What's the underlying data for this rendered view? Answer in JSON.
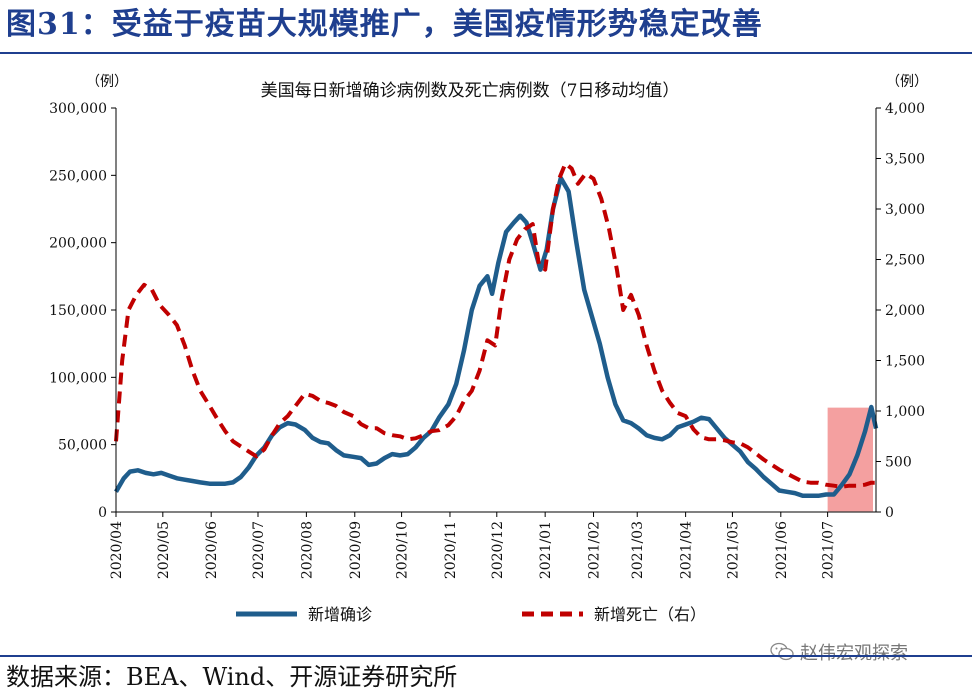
{
  "figure": {
    "title": "图31：受益于疫苗大规模推广，美国疫情形势稳定改善",
    "source": "数据来源：BEA、Wind、开源证券研究所",
    "watermark": "赵伟宏观探索",
    "watermark_icon": "wechat-icon"
  },
  "chart_data": {
    "type": "line",
    "title": "美国每日新增确诊病例数及死亡病例数（7日移动均值）",
    "y_unit_left": "（例）",
    "y_unit_right": "（例）",
    "x_ticks": [
      "2020/04",
      "2020/05",
      "2020/06",
      "2020/07",
      "2020/08",
      "2020/09",
      "2020/10",
      "2020/11",
      "2020/12",
      "2021/01",
      "2021/02",
      "2021/03",
      "2021/04",
      "2021/05",
      "2021/06",
      "2021/07"
    ],
    "ylim_left": [
      0,
      300000
    ],
    "yticks_left": [
      "0",
      "50,000",
      "100,000",
      "150,000",
      "200,000",
      "250,000",
      "300,000"
    ],
    "ylim_right": [
      0,
      4000
    ],
    "yticks_right": [
      "0",
      "500",
      "1,000",
      "1,500",
      "2,000",
      "2,500",
      "3,000",
      "3,500",
      "4,000"
    ],
    "grid": false,
    "legend_position": "bottom",
    "colors": {
      "confirmed": "#1f5d8c",
      "deaths": "#c00000",
      "highlight": "#f08080"
    },
    "highlight": {
      "x_start": "2021-07-01",
      "x_end": "2021-08-01",
      "y_low": 500,
      "y_high": 77500
    },
    "series": [
      {
        "name": "新增确诊",
        "axis": "left",
        "style": "solid",
        "points": [
          [
            "2020-04-01",
            15000
          ],
          [
            "2020-04-06",
            25000
          ],
          [
            "2020-04-10",
            30000
          ],
          [
            "2020-04-15",
            31000
          ],
          [
            "2020-04-20",
            29000
          ],
          [
            "2020-04-25",
            28000
          ],
          [
            "2020-04-30",
            29000
          ],
          [
            "2020-05-05",
            27000
          ],
          [
            "2020-05-10",
            25000
          ],
          [
            "2020-05-15",
            24000
          ],
          [
            "2020-05-20",
            23000
          ],
          [
            "2020-05-25",
            22000
          ],
          [
            "2020-05-31",
            21000
          ],
          [
            "2020-06-05",
            21000
          ],
          [
            "2020-06-10",
            21000
          ],
          [
            "2020-06-15",
            22000
          ],
          [
            "2020-06-20",
            26000
          ],
          [
            "2020-06-25",
            33000
          ],
          [
            "2020-06-30",
            42000
          ],
          [
            "2020-07-05",
            48000
          ],
          [
            "2020-07-10",
            57000
          ],
          [
            "2020-07-15",
            63000
          ],
          [
            "2020-07-20",
            66000
          ],
          [
            "2020-07-25",
            65000
          ],
          [
            "2020-07-31",
            61000
          ],
          [
            "2020-08-05",
            55000
          ],
          [
            "2020-08-10",
            52000
          ],
          [
            "2020-08-15",
            51000
          ],
          [
            "2020-08-20",
            46000
          ],
          [
            "2020-08-25",
            42000
          ],
          [
            "2020-08-31",
            41000
          ],
          [
            "2020-09-05",
            40000
          ],
          [
            "2020-09-10",
            35000
          ],
          [
            "2020-09-15",
            36000
          ],
          [
            "2020-09-20",
            40000
          ],
          [
            "2020-09-25",
            43000
          ],
          [
            "2020-09-30",
            42000
          ],
          [
            "2020-10-05",
            43000
          ],
          [
            "2020-10-10",
            48000
          ],
          [
            "2020-10-15",
            55000
          ],
          [
            "2020-10-20",
            60000
          ],
          [
            "2020-10-25",
            70000
          ],
          [
            "2020-10-31",
            80000
          ],
          [
            "2020-11-05",
            95000
          ],
          [
            "2020-11-10",
            120000
          ],
          [
            "2020-11-15",
            150000
          ],
          [
            "2020-11-20",
            168000
          ],
          [
            "2020-11-25",
            175000
          ],
          [
            "2020-11-28",
            162000
          ],
          [
            "2020-12-02",
            185000
          ],
          [
            "2020-12-07",
            208000
          ],
          [
            "2020-12-12",
            215000
          ],
          [
            "2020-12-16",
            220000
          ],
          [
            "2020-12-20",
            215000
          ],
          [
            "2020-12-24",
            200000
          ],
          [
            "2020-12-29",
            180000
          ],
          [
            "2021-01-02",
            195000
          ],
          [
            "2021-01-06",
            225000
          ],
          [
            "2021-01-11",
            248000
          ],
          [
            "2021-01-16",
            238000
          ],
          [
            "2021-01-21",
            200000
          ],
          [
            "2021-01-26",
            165000
          ],
          [
            "2021-01-31",
            145000
          ],
          [
            "2021-02-05",
            125000
          ],
          [
            "2021-02-10",
            100000
          ],
          [
            "2021-02-15",
            80000
          ],
          [
            "2021-02-20",
            68000
          ],
          [
            "2021-02-25",
            66000
          ],
          [
            "2021-03-02",
            62000
          ],
          [
            "2021-03-07",
            57000
          ],
          [
            "2021-03-12",
            55000
          ],
          [
            "2021-03-17",
            54000
          ],
          [
            "2021-03-22",
            57000
          ],
          [
            "2021-03-27",
            63000
          ],
          [
            "2021-04-01",
            65000
          ],
          [
            "2021-04-06",
            67000
          ],
          [
            "2021-04-11",
            70000
          ],
          [
            "2021-04-16",
            69000
          ],
          [
            "2021-04-21",
            62000
          ],
          [
            "2021-04-26",
            55000
          ],
          [
            "2021-05-01",
            50000
          ],
          [
            "2021-05-06",
            45000
          ],
          [
            "2021-05-11",
            37000
          ],
          [
            "2021-05-16",
            32000
          ],
          [
            "2021-05-21",
            26000
          ],
          [
            "2021-05-26",
            21000
          ],
          [
            "2021-05-31",
            16000
          ],
          [
            "2021-06-05",
            15000
          ],
          [
            "2021-06-10",
            14000
          ],
          [
            "2021-06-15",
            12000
          ],
          [
            "2021-06-20",
            12000
          ],
          [
            "2021-06-25",
            12000
          ],
          [
            "2021-06-30",
            13000
          ],
          [
            "2021-07-05",
            13000
          ],
          [
            "2021-07-10",
            20000
          ],
          [
            "2021-07-15",
            28000
          ],
          [
            "2021-07-20",
            42000
          ],
          [
            "2021-07-25",
            60000
          ],
          [
            "2021-07-29",
            78000
          ],
          [
            "2021-08-01",
            62000
          ]
        ]
      },
      {
        "name": "新增死亡（右）",
        "axis": "right",
        "style": "dashed",
        "points": [
          [
            "2020-04-01",
            700
          ],
          [
            "2020-04-05",
            1500
          ],
          [
            "2020-04-09",
            2000
          ],
          [
            "2020-04-14",
            2150
          ],
          [
            "2020-04-19",
            2250
          ],
          [
            "2020-04-24",
            2200
          ],
          [
            "2020-04-29",
            2050
          ],
          [
            "2020-05-05",
            1950
          ],
          [
            "2020-05-10",
            1850
          ],
          [
            "2020-05-15",
            1650
          ],
          [
            "2020-05-20",
            1400
          ],
          [
            "2020-05-25",
            1200
          ],
          [
            "2020-05-31",
            1050
          ],
          [
            "2020-06-05",
            920
          ],
          [
            "2020-06-10",
            800
          ],
          [
            "2020-06-15",
            700
          ],
          [
            "2020-06-20",
            650
          ],
          [
            "2020-06-25",
            600
          ],
          [
            "2020-06-30",
            550
          ],
          [
            "2020-07-05",
            620
          ],
          [
            "2020-07-10",
            760
          ],
          [
            "2020-07-15",
            880
          ],
          [
            "2020-07-20",
            950
          ],
          [
            "2020-07-25",
            1050
          ],
          [
            "2020-07-31",
            1170
          ],
          [
            "2020-08-05",
            1150
          ],
          [
            "2020-08-10",
            1100
          ],
          [
            "2020-08-15",
            1080
          ],
          [
            "2020-08-20",
            1050
          ],
          [
            "2020-08-25",
            990
          ],
          [
            "2020-08-31",
            950
          ],
          [
            "2020-09-05",
            870
          ],
          [
            "2020-09-10",
            830
          ],
          [
            "2020-09-15",
            830
          ],
          [
            "2020-09-20",
            780
          ],
          [
            "2020-09-25",
            760
          ],
          [
            "2020-09-30",
            750
          ],
          [
            "2020-10-05",
            720
          ],
          [
            "2020-10-10",
            730
          ],
          [
            "2020-10-15",
            760
          ],
          [
            "2020-10-20",
            800
          ],
          [
            "2020-10-25",
            810
          ],
          [
            "2020-10-31",
            860
          ],
          [
            "2020-11-05",
            950
          ],
          [
            "2020-11-10",
            1100
          ],
          [
            "2020-11-15",
            1200
          ],
          [
            "2020-11-20",
            1400
          ],
          [
            "2020-11-25",
            1700
          ],
          [
            "2020-11-30",
            1650
          ],
          [
            "2020-12-04",
            2100
          ],
          [
            "2020-12-09",
            2500
          ],
          [
            "2020-12-14",
            2700
          ],
          [
            "2020-12-19",
            2800
          ],
          [
            "2020-12-24",
            2850
          ],
          [
            "2020-12-28",
            2450
          ],
          [
            "2021-01-01",
            2400
          ],
          [
            "2021-01-06",
            3000
          ],
          [
            "2021-01-10",
            3300
          ],
          [
            "2021-01-14",
            3450
          ],
          [
            "2021-01-18",
            3400
          ],
          [
            "2021-01-22",
            3250
          ],
          [
            "2021-01-27",
            3350
          ],
          [
            "2021-02-01",
            3300
          ],
          [
            "2021-02-06",
            3100
          ],
          [
            "2021-02-11",
            2800
          ],
          [
            "2021-02-16",
            2400
          ],
          [
            "2021-02-20",
            2000
          ],
          [
            "2021-02-25",
            2150
          ],
          [
            "2021-03-02",
            1950
          ],
          [
            "2021-03-07",
            1650
          ],
          [
            "2021-03-12",
            1400
          ],
          [
            "2021-03-17",
            1200
          ],
          [
            "2021-03-22",
            1080
          ],
          [
            "2021-03-27",
            980
          ],
          [
            "2021-04-01",
            950
          ],
          [
            "2021-04-06",
            820
          ],
          [
            "2021-04-11",
            740
          ],
          [
            "2021-04-16",
            720
          ],
          [
            "2021-04-21",
            720
          ],
          [
            "2021-04-26",
            710
          ],
          [
            "2021-05-01",
            690
          ],
          [
            "2021-05-06",
            680
          ],
          [
            "2021-05-11",
            640
          ],
          [
            "2021-05-16",
            580
          ],
          [
            "2021-05-21",
            520
          ],
          [
            "2021-05-26",
            470
          ],
          [
            "2021-05-31",
            420
          ],
          [
            "2021-06-05",
            380
          ],
          [
            "2021-06-10",
            340
          ],
          [
            "2021-06-15",
            300
          ],
          [
            "2021-06-20",
            290
          ],
          [
            "2021-06-25",
            290
          ],
          [
            "2021-06-30",
            270
          ],
          [
            "2021-07-05",
            260
          ],
          [
            "2021-07-10",
            250
          ],
          [
            "2021-07-15",
            260
          ],
          [
            "2021-07-20",
            260
          ],
          [
            "2021-07-25",
            270
          ],
          [
            "2021-07-29",
            290
          ],
          [
            "2021-08-01",
            290
          ]
        ]
      }
    ]
  }
}
